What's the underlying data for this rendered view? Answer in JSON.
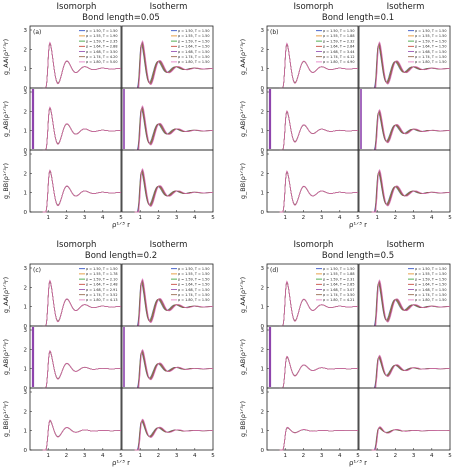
{
  "figure": {
    "left_header": "Isomorph",
    "right_header": "Isotherm",
    "xlabel": "ρ¹ᐟ³ r",
    "xticks": [
      "1",
      "2",
      "3",
      "4",
      "5"
    ],
    "yticks": [
      "0",
      "1",
      "2",
      "3"
    ],
    "row_ylabels": [
      "g_AA(ρ¹ᐟ³r)",
      "g_AB(ρ¹ᐟ³r)",
      "g_BB(ρ¹ᐟ³r)"
    ]
  },
  "colors": [
    "#1f3fbf",
    "#e08a1e",
    "#2a9a2a",
    "#c0392b",
    "#8e44ad",
    "#8c5a3c",
    "#e377c2"
  ],
  "chart_data": [
    {
      "type": "line",
      "tag": "(a)",
      "title": "Bond length=0.05",
      "x_range": [
        0,
        5
      ],
      "ylim": [
        0,
        3
      ],
      "grid": false,
      "legend_position": "top-right",
      "peaks": {
        "AA": 2.45,
        "AB": 2.3,
        "BB": 2.25
      },
      "isomorph_legend": [
        "ρ = 1.50, T = 1.50",
        "ρ = 1.55, T = 1.90",
        "ρ = 1.59, T = 2.35",
        "ρ = 1.64, T = 2.88",
        "ρ = 1.68, T = 3.50",
        "ρ = 1.74, T = 4.20",
        "ρ = 1.80, T = 5.00"
      ],
      "isotherm_legend": [
        "ρ = 1.50, T = 1.50",
        "ρ = 1.55, T = 1.50",
        "ρ = 1.59, T = 1.50",
        "ρ = 1.64, T = 1.50",
        "ρ = 1.68, T = 1.50",
        "ρ = 1.74, T = 1.50",
        "ρ = 1.80, T = 1.50"
      ]
    },
    {
      "type": "line",
      "tag": "(b)",
      "title": "Bond length=0.1",
      "x_range": [
        0,
        5
      ],
      "ylim": [
        0,
        3
      ],
      "grid": false,
      "legend_position": "top-right",
      "peaks": {
        "AA": 2.4,
        "AB": 2.1,
        "BB": 2.2
      },
      "isomorph_legend": [
        "ρ = 1.50, T = 1.50",
        "ρ = 1.55, T = 1.88",
        "ρ = 1.59, T = 2.32",
        "ρ = 1.64, T = 2.84",
        "ρ = 1.68, T = 3.44",
        "ρ = 1.74, T = 4.12",
        "ρ = 1.80, T = 4.90"
      ],
      "isotherm_legend": [
        "ρ = 1.50, T = 1.50",
        "ρ = 1.55, T = 1.50",
        "ρ = 1.59, T = 1.50",
        "ρ = 1.64, T = 1.50",
        "ρ = 1.68, T = 1.50",
        "ρ = 1.74, T = 1.50",
        "ρ = 1.80, T = 1.50"
      ]
    },
    {
      "type": "line",
      "tag": "(c)",
      "title": "Bond length=0.2",
      "x_range": [
        0,
        5
      ],
      "ylim": [
        0,
        3
      ],
      "grid": false,
      "legend_position": "top-right",
      "peaks": {
        "AA": 2.45,
        "AB": 2.0,
        "BB": 1.6
      },
      "isomorph_legend": [
        "ρ = 1.50, T = 1.50",
        "ρ = 1.55, T = 1.78",
        "ρ = 1.59, T = 2.10",
        "ρ = 1.64, T = 2.48",
        "ρ = 1.68, T = 2.91",
        "ρ = 1.74, T = 3.52",
        "ρ = 1.80, T = 4.13"
      ],
      "isotherm_legend": [
        "ρ = 1.50, T = 1.50",
        "ρ = 1.55, T = 1.50",
        "ρ = 1.59, T = 1.50",
        "ρ = 1.64, T = 1.50",
        "ρ = 1.68, T = 1.50",
        "ρ = 1.74, T = 1.50",
        "ρ = 1.80, T = 1.50"
      ]
    },
    {
      "type": "line",
      "tag": "(d)",
      "title": "Bond length=0.5",
      "x_range": [
        0,
        5
      ],
      "ylim": [
        0,
        3
      ],
      "grid": false,
      "legend_position": "top-right",
      "peaks": {
        "AA": 2.4,
        "AB": 1.7,
        "BB": 1.2
      },
      "isomorph_legend": [
        "ρ = 1.50, T = 1.50",
        "ρ = 1.55, T = 1.88",
        "ρ = 1.59, T = 2.31",
        "ρ = 1.64, T = 2.85",
        "ρ = 1.68, T = 3.07",
        "ρ = 1.74, T = 3.50",
        "ρ = 1.80, T = 4.21"
      ],
      "isotherm_legend": [
        "ρ = 1.50, T = 1.50",
        "ρ = 1.55, T = 1.50",
        "ρ = 1.59, T = 1.50",
        "ρ = 1.64, T = 1.50",
        "ρ = 1.68, T = 1.50",
        "ρ = 1.74, T = 1.50",
        "ρ = 1.80, T = 1.50"
      ]
    }
  ]
}
